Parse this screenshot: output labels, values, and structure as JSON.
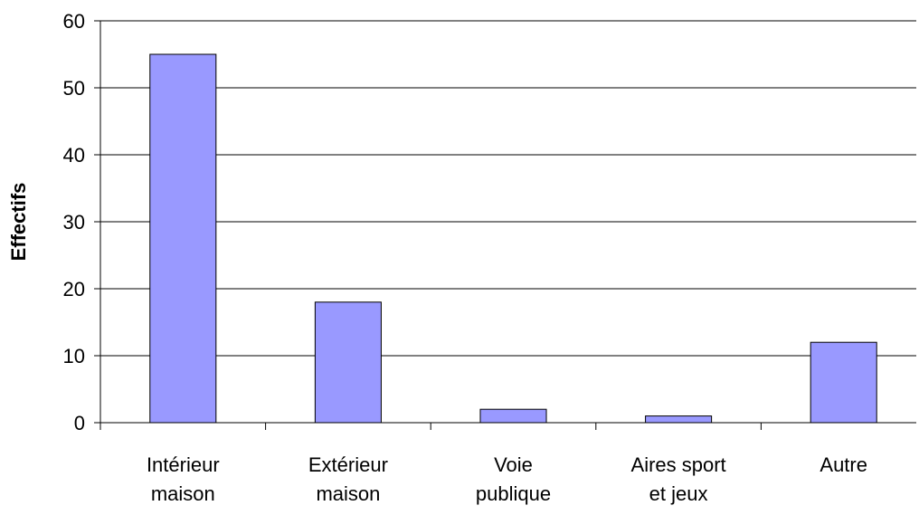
{
  "chart_data": {
    "type": "bar",
    "y_label": "Effectifs",
    "categories": [
      "Intérieur\nmaison",
      "Extérieur\nmaison",
      "Voie\npublique",
      "Aires sport\net jeux",
      "Autre"
    ],
    "values": [
      55,
      18,
      2,
      1,
      12
    ],
    "color": "#9999ff",
    "ylim": [
      0,
      60
    ],
    "yticks": [
      0,
      10,
      20,
      30,
      40,
      50,
      60
    ],
    "grid": true
  }
}
